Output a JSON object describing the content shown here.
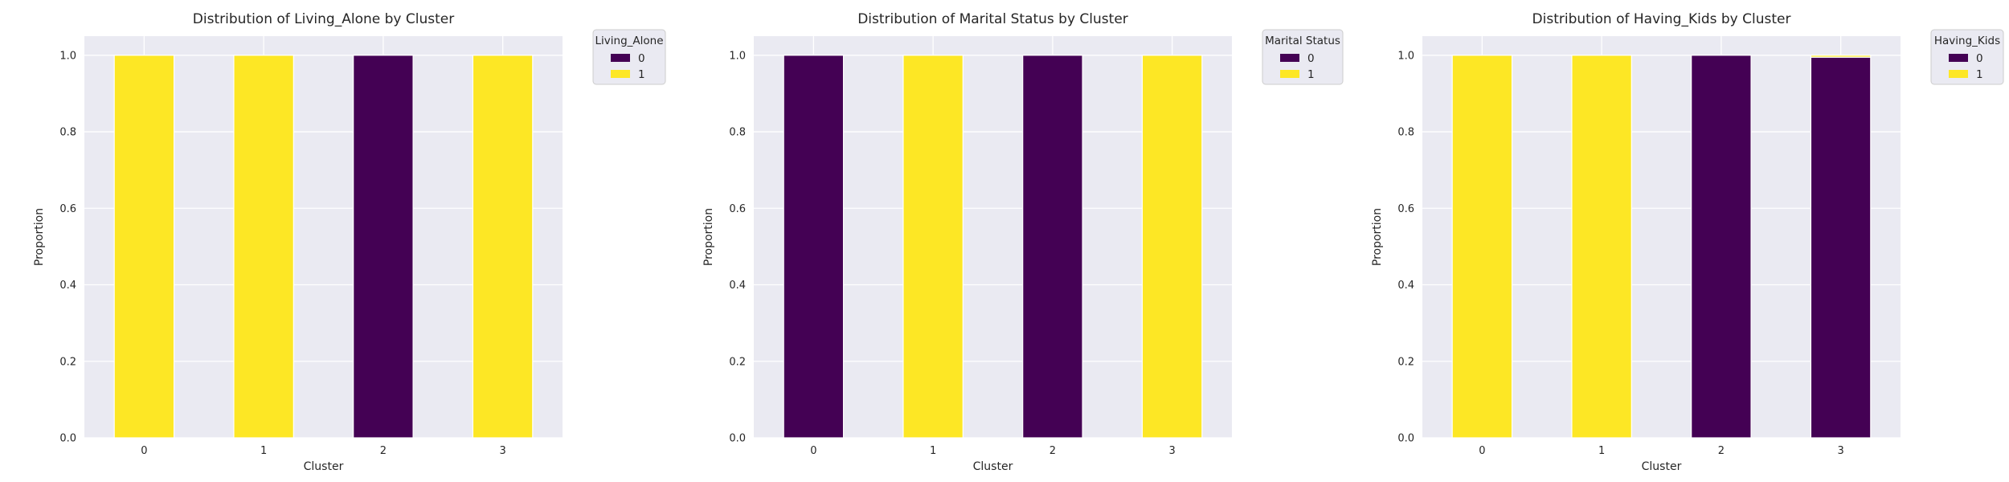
{
  "chart_data": [
    {
      "type": "bar",
      "stacked": true,
      "title": "Distribution of Living_Alone by Cluster",
      "xlabel": "Cluster",
      "ylabel": "Proportion",
      "categories": [
        "0",
        "1",
        "2",
        "3"
      ],
      "ylim": [
        0,
        1.05
      ],
      "yticks": [
        "0.0",
        "0.2",
        "0.4",
        "0.6",
        "0.8",
        "1.0"
      ],
      "grid": true,
      "legend": {
        "title": "Living_Alone",
        "placement": "outside-top-right"
      },
      "series": [
        {
          "name": "0",
          "color": "#440154",
          "values": [
            0.0,
            0.0,
            1.0,
            0.0
          ]
        },
        {
          "name": "1",
          "color": "#fde725",
          "values": [
            1.0,
            1.0,
            0.0,
            1.0
          ]
        }
      ]
    },
    {
      "type": "bar",
      "stacked": true,
      "title": "Distribution of Marital Status by Cluster",
      "xlabel": "Cluster",
      "ylabel": "Proportion",
      "categories": [
        "0",
        "1",
        "2",
        "3"
      ],
      "ylim": [
        0,
        1.05
      ],
      "yticks": [
        "0.0",
        "0.2",
        "0.4",
        "0.6",
        "0.8",
        "1.0"
      ],
      "grid": true,
      "legend": {
        "title": "Marital Status",
        "placement": "outside-top-right"
      },
      "series": [
        {
          "name": "0",
          "color": "#440154",
          "values": [
            1.0,
            0.0,
            1.0,
            0.0
          ]
        },
        {
          "name": "1",
          "color": "#fde725",
          "values": [
            0.0,
            1.0,
            0.0,
            1.0
          ]
        }
      ]
    },
    {
      "type": "bar",
      "stacked": true,
      "title": "Distribution of Having_Kids by Cluster",
      "xlabel": "Cluster",
      "ylabel": "Proportion",
      "categories": [
        "0",
        "1",
        "2",
        "3"
      ],
      "ylim": [
        0,
        1.05
      ],
      "yticks": [
        "0.0",
        "0.2",
        "0.4",
        "0.6",
        "0.8",
        "1.0"
      ],
      "grid": true,
      "legend": {
        "title": "Having_Kids",
        "placement": "outside-top-right"
      },
      "series": [
        {
          "name": "0",
          "color": "#440154",
          "values": [
            0.0,
            0.0,
            1.0,
            0.995
          ]
        },
        {
          "name": "1",
          "color": "#fde725",
          "values": [
            1.0,
            1.0,
            0.0,
            0.005
          ]
        }
      ]
    }
  ]
}
